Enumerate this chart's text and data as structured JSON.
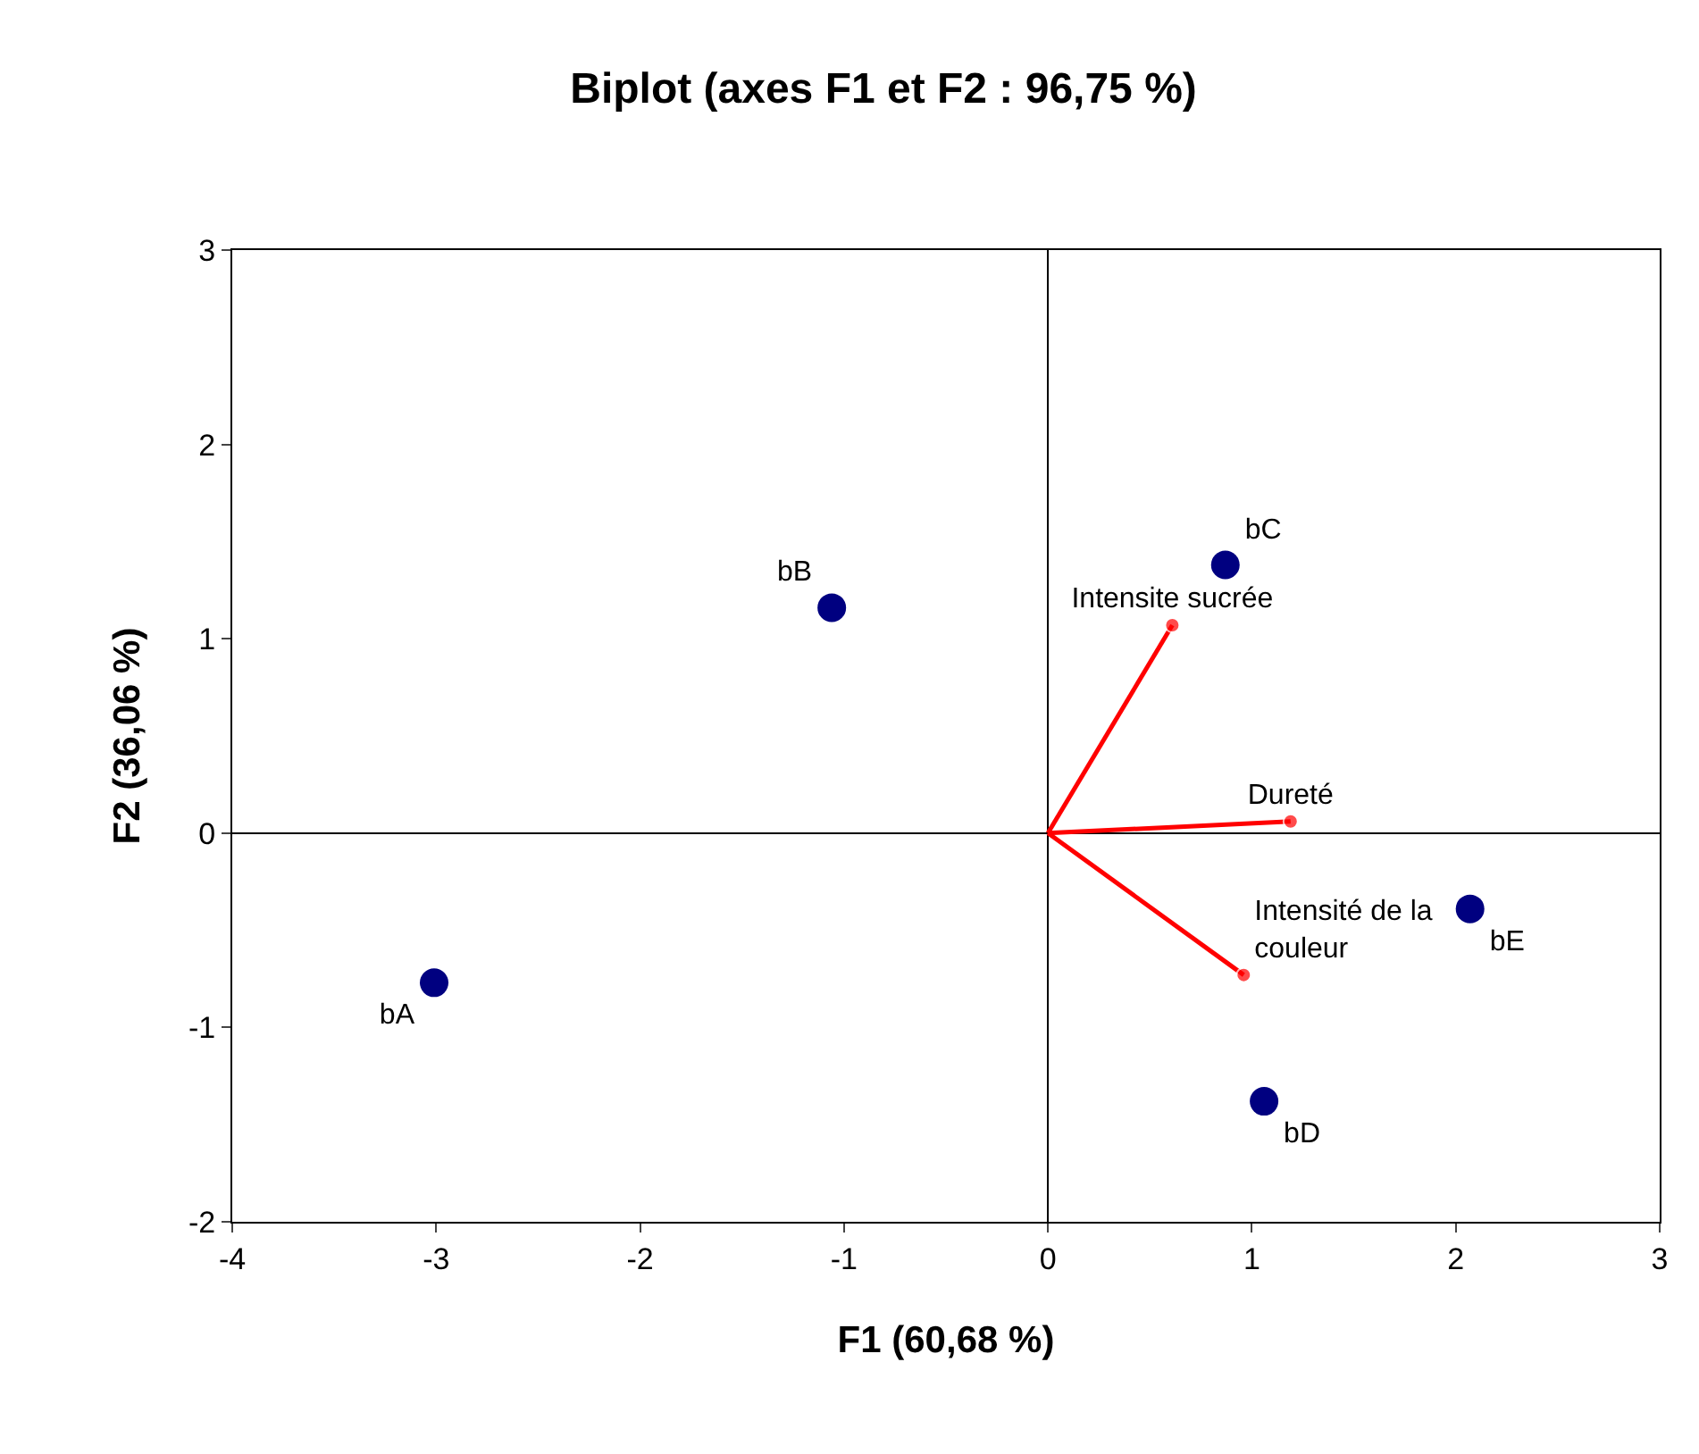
{
  "chart_data": {
    "type": "scatter",
    "title": "Biplot (axes F1 et F2 : 96,75 %)",
    "xlabel": "F1 (60,68 %)",
    "ylabel": "F2 (36,06 %)",
    "xlim": [
      -4,
      3
    ],
    "xticks": [
      -4,
      -3,
      -2,
      -1,
      0,
      1,
      2,
      3
    ],
    "ylim": [
      -2,
      3
    ],
    "yticks": [
      -2,
      -1,
      0,
      1,
      2,
      3
    ],
    "legend": false,
    "marker": "circle",
    "series": [
      {
        "name": "bA",
        "color": "#000080",
        "x": [
          -3.01
        ],
        "values": [
          -0.77
        ]
      },
      {
        "name": "bB",
        "color": "#000080",
        "x": [
          -1.06
        ],
        "values": [
          1.16
        ]
      },
      {
        "name": "bC",
        "color": "#000080",
        "x": [
          0.87
        ],
        "values": [
          1.38
        ]
      },
      {
        "name": "bD",
        "color": "#000080",
        "x": [
          1.06
        ],
        "values": [
          -1.38
        ]
      },
      {
        "name": "bE",
        "color": "#000080",
        "x": [
          2.07
        ],
        "values": [
          -0.39
        ]
      },
      {
        "name": "Intensite sucrée",
        "type": "line",
        "color": "#ff0000",
        "x": [
          0,
          0.61
        ],
        "values": [
          0,
          1.07
        ]
      },
      {
        "name": "Dureté",
        "type": "line",
        "color": "#ff0000",
        "x": [
          0,
          1.19
        ],
        "values": [
          0,
          0.06
        ]
      },
      {
        "name": "Intensité de la couleur",
        "type": "line",
        "color": "#ff0000",
        "x": [
          0,
          0.96
        ],
        "values": [
          0,
          -0.73
        ]
      }
    ]
  }
}
